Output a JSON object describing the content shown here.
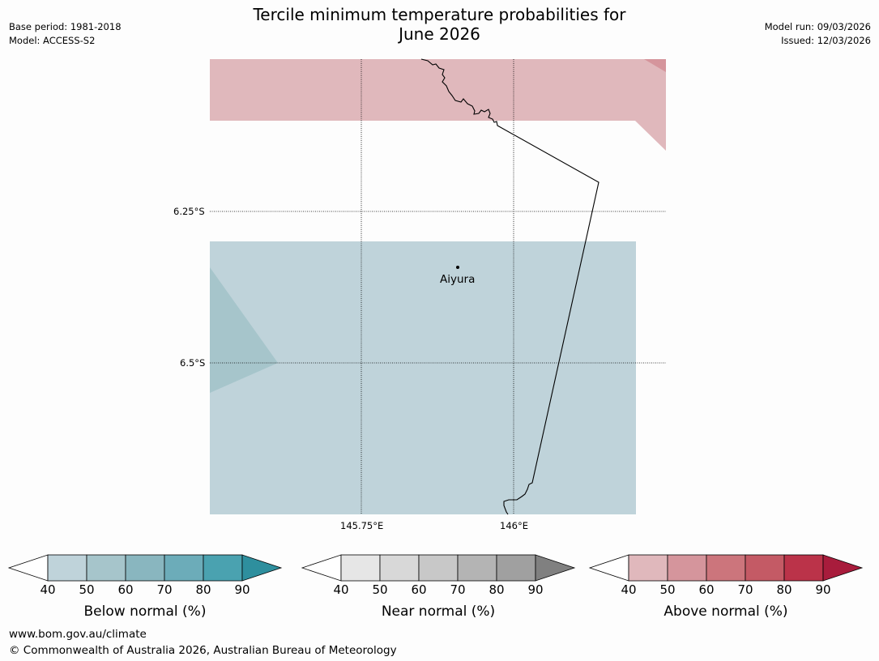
{
  "header": {
    "title_line1": "Tercile minimum temperature probabilities for",
    "title_line2": "June 2026",
    "base_period": "Base period: 1981-2018",
    "model": "Model: ACCESS-S2",
    "model_run": "Model run: 09/03/2026",
    "issued": "Issued: 12/03/2026"
  },
  "map": {
    "lat_labels": [
      "6.25°S",
      "6.5°S"
    ],
    "lon_labels": [
      "145.75°E",
      "146°E"
    ],
    "place_label": "Aiyura"
  },
  "colorbars": [
    {
      "label": "Below normal (%)",
      "ticks": [
        "40",
        "50",
        "60",
        "70",
        "80",
        "90"
      ],
      "colors": [
        "#bfd3da",
        "#a6c5cb",
        "#89b6bf",
        "#6cacb9",
        "#4aa2b0",
        "#2e8f9e"
      ]
    },
    {
      "label": "Near normal (%)",
      "ticks": [
        "40",
        "50",
        "60",
        "70",
        "80",
        "90"
      ],
      "colors": [
        "#e6e6e6",
        "#d8d8d8",
        "#c8c8c8",
        "#b4b4b4",
        "#a0a0a0",
        "#808080"
      ]
    },
    {
      "label": "Above normal (%)",
      "ticks": [
        "40",
        "50",
        "60",
        "70",
        "80",
        "90"
      ],
      "colors": [
        "#e0b8bc",
        "#d5959c",
        "#cc757c",
        "#c45a65",
        "#bb3349",
        "#a81c3c"
      ]
    }
  ],
  "footer": {
    "url": "www.bom.gov.au/climate",
    "copyright": "© Commonwealth of Australia 2026, Australian Bureau of Meteorology"
  }
}
